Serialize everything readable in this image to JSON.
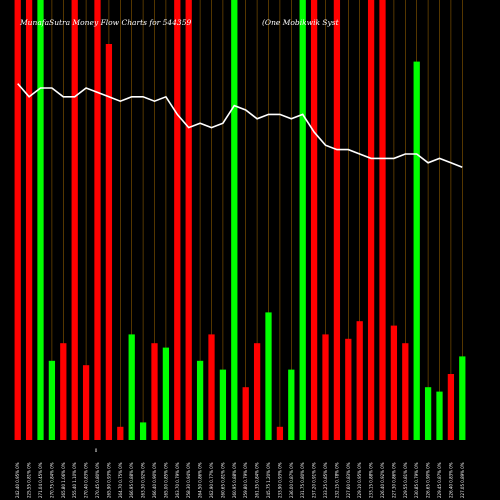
{
  "chart_data": {
    "type": "bar",
    "title": "MunafaSutra  Money Flow  Charts for 544359",
    "subtitle": "(One    Mobikwik Syst",
    "zero_label": "0",
    "ylim": [
      0,
      100
    ],
    "colors": {
      "background": "#000000",
      "up": "#00ff00",
      "down": "#ff0000",
      "line": "#ffffff",
      "grid": "#8b5a00"
    },
    "categories": [
      "242.40 0.95% 0%",
      "225.55 0.81% 0%",
      "271.04 0.45% 0%",
      "270.75 0.84% 0%",
      "265.80 1.06% 0%",
      "255.40 1.10% 0%",
      "270.40 0.83% 0%",
      "270.45 0.80% 0%",
      "265.90 0.93% 0%",
      "264.70 0.75% 0%",
      "266.95 0.88% 0%",
      "263.30 0.92% 0%",
      "266.40 0.90% 0%",
      "265.00 0.85% 0%",
      "263.70 0.79% 0%",
      "258.30 0.94% 0%",
      "264.50 0.86% 0%",
      "262.90 0.77% 0%",
      "260.65 0.81% 0%",
      "260.95 0.88% 0%",
      "259.80 0.79% 0%",
      "261.35 0.84% 0%",
      "245.75 1.20% 0%",
      "233.90 0.93% 0%",
      "236.00 0.87% 0%",
      "231.75 0.80% 0%",
      "237.20 0.91% 0%",
      "233.25 0.85% 0%",
      "232.15 0.78% 0%",
      "227.60 0.83% 0%",
      "229.10 0.95% 0%",
      "233.15 0.88% 0%",
      "226.40 0.92% 0%",
      "227.30 0.86% 0%",
      "229.55 0.81% 0%",
      "230.85 0.79% 0%",
      "226.65 0.90% 0%",
      "229.45 0.87% 0%",
      "226.40 0.83% 0%",
      "227.05 0.89% 0%"
    ],
    "series": [
      {
        "values": [
          100,
          100,
          100,
          18,
          22,
          100,
          17,
          100,
          90,
          3,
          24,
          4,
          22,
          21,
          100,
          100,
          18,
          24,
          16,
          100,
          12,
          22,
          29,
          3,
          16,
          100,
          100,
          24,
          100,
          23,
          27,
          100,
          100,
          26,
          22,
          86,
          12,
          11,
          15,
          19
        ],
        "direction": [
          "down",
          "down",
          "up",
          "up",
          "down",
          "down",
          "down",
          "down",
          "down",
          "down",
          "up",
          "up",
          "down",
          "up",
          "down",
          "down",
          "up",
          "down",
          "up",
          "up",
          "down",
          "down",
          "up",
          "down",
          "up",
          "up",
          "down",
          "down",
          "down",
          "down",
          "down",
          "down",
          "down",
          "down",
          "down",
          "up",
          "up",
          "up",
          "down",
          "up"
        ]
      },
      {
        "values": [
          81,
          78,
          80,
          80,
          78,
          78,
          80,
          79,
          78,
          77,
          78,
          78,
          77,
          78,
          74,
          71,
          72,
          71,
          72,
          76,
          75,
          73,
          74,
          74,
          73,
          74,
          70,
          67,
          66,
          66,
          65,
          64,
          64,
          64,
          65,
          65,
          63,
          64,
          63,
          62
        ]
      }
    ],
    "grid": "vertical"
  }
}
